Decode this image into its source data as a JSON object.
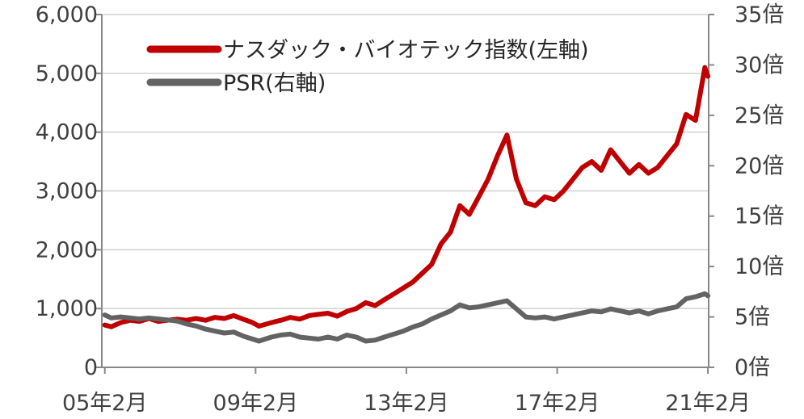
{
  "chart_data": {
    "type": "line",
    "title": "",
    "grid": true,
    "legend_position": "top-left",
    "x_ticks": [
      "05年2月",
      "09年2月",
      "13年2月",
      "17年2月",
      "21年2月"
    ],
    "y_left": {
      "min": 0,
      "max": 6000,
      "step": 1000,
      "tick_labels": [
        "0",
        "1,000",
        "2,000",
        "3,000",
        "4,000",
        "5,000",
        "6,000"
      ]
    },
    "y_right": {
      "min": 0,
      "max": 35,
      "step": 5,
      "tick_labels": [
        "0倍",
        "5倍",
        "10倍",
        "15倍",
        "20倍",
        "25倍",
        "30倍",
        "35倍"
      ]
    },
    "series": [
      {
        "name": "ナスダック・バイオテック指数(左軸)",
        "axis": "left",
        "color": "#c00000",
        "points": [
          [
            2005.08,
            720
          ],
          [
            2005.25,
            690
          ],
          [
            2005.5,
            760
          ],
          [
            2005.75,
            800
          ],
          [
            2006.0,
            780
          ],
          [
            2006.25,
            830
          ],
          [
            2006.5,
            780
          ],
          [
            2006.75,
            800
          ],
          [
            2007.0,
            820
          ],
          [
            2007.25,
            800
          ],
          [
            2007.5,
            830
          ],
          [
            2007.75,
            800
          ],
          [
            2008.0,
            850
          ],
          [
            2008.25,
            830
          ],
          [
            2008.5,
            880
          ],
          [
            2008.75,
            820
          ],
          [
            2009.0,
            760
          ],
          [
            2009.17,
            700
          ],
          [
            2009.5,
            760
          ],
          [
            2009.75,
            800
          ],
          [
            2010.0,
            850
          ],
          [
            2010.25,
            820
          ],
          [
            2010.5,
            880
          ],
          [
            2010.75,
            900
          ],
          [
            2011.0,
            920
          ],
          [
            2011.25,
            870
          ],
          [
            2011.5,
            950
          ],
          [
            2011.75,
            1000
          ],
          [
            2012.0,
            1100
          ],
          [
            2012.25,
            1050
          ],
          [
            2012.5,
            1150
          ],
          [
            2012.75,
            1250
          ],
          [
            2013.0,
            1350
          ],
          [
            2013.25,
            1450
          ],
          [
            2013.5,
            1600
          ],
          [
            2013.75,
            1750
          ],
          [
            2014.0,
            2100
          ],
          [
            2014.25,
            2300
          ],
          [
            2014.5,
            2750
          ],
          [
            2014.75,
            2600
          ],
          [
            2015.0,
            2900
          ],
          [
            2015.25,
            3200
          ],
          [
            2015.5,
            3600
          ],
          [
            2015.75,
            3950
          ],
          [
            2016.0,
            3200
          ],
          [
            2016.25,
            2800
          ],
          [
            2016.5,
            2750
          ],
          [
            2016.75,
            2900
          ],
          [
            2017.0,
            2850
          ],
          [
            2017.25,
            3000
          ],
          [
            2017.5,
            3200
          ],
          [
            2017.75,
            3400
          ],
          [
            2018.0,
            3500
          ],
          [
            2018.25,
            3350
          ],
          [
            2018.5,
            3700
          ],
          [
            2018.75,
            3500
          ],
          [
            2019.0,
            3300
          ],
          [
            2019.25,
            3450
          ],
          [
            2019.5,
            3300
          ],
          [
            2019.75,
            3400
          ],
          [
            2020.0,
            3600
          ],
          [
            2020.25,
            3800
          ],
          [
            2020.5,
            4300
          ],
          [
            2020.75,
            4200
          ],
          [
            2021.0,
            5100
          ],
          [
            2021.08,
            4950
          ]
        ]
      },
      {
        "name": "PSR(右軸)",
        "axis": "right",
        "color": "#636363",
        "points": [
          [
            2005.08,
            5.2
          ],
          [
            2005.25,
            4.9
          ],
          [
            2005.5,
            5.0
          ],
          [
            2005.75,
            4.9
          ],
          [
            2006.0,
            4.8
          ],
          [
            2006.25,
            4.9
          ],
          [
            2006.5,
            4.8
          ],
          [
            2006.75,
            4.7
          ],
          [
            2007.0,
            4.6
          ],
          [
            2007.25,
            4.3
          ],
          [
            2007.5,
            4.1
          ],
          [
            2007.75,
            3.8
          ],
          [
            2008.0,
            3.6
          ],
          [
            2008.25,
            3.4
          ],
          [
            2008.5,
            3.5
          ],
          [
            2008.75,
            3.1
          ],
          [
            2009.0,
            2.8
          ],
          [
            2009.17,
            2.6
          ],
          [
            2009.5,
            3.0
          ],
          [
            2009.75,
            3.2
          ],
          [
            2010.0,
            3.3
          ],
          [
            2010.25,
            3.0
          ],
          [
            2010.5,
            2.9
          ],
          [
            2010.75,
            2.8
          ],
          [
            2011.0,
            3.0
          ],
          [
            2011.25,
            2.8
          ],
          [
            2011.5,
            3.2
          ],
          [
            2011.75,
            3.0
          ],
          [
            2012.0,
            2.6
          ],
          [
            2012.25,
            2.7
          ],
          [
            2012.5,
            3.0
          ],
          [
            2012.75,
            3.3
          ],
          [
            2013.0,
            3.6
          ],
          [
            2013.25,
            4.0
          ],
          [
            2013.5,
            4.3
          ],
          [
            2013.75,
            4.8
          ],
          [
            2014.0,
            5.2
          ],
          [
            2014.25,
            5.6
          ],
          [
            2014.5,
            6.2
          ],
          [
            2014.75,
            5.9
          ],
          [
            2015.0,
            6.0
          ],
          [
            2015.25,
            6.2
          ],
          [
            2015.5,
            6.4
          ],
          [
            2015.75,
            6.6
          ],
          [
            2016.0,
            5.8
          ],
          [
            2016.25,
            5.0
          ],
          [
            2016.5,
            4.9
          ],
          [
            2016.75,
            5.0
          ],
          [
            2017.0,
            4.8
          ],
          [
            2017.25,
            5.0
          ],
          [
            2017.5,
            5.2
          ],
          [
            2017.75,
            5.4
          ],
          [
            2018.0,
            5.6
          ],
          [
            2018.25,
            5.5
          ],
          [
            2018.5,
            5.8
          ],
          [
            2018.75,
            5.6
          ],
          [
            2019.0,
            5.4
          ],
          [
            2019.25,
            5.6
          ],
          [
            2019.5,
            5.3
          ],
          [
            2019.75,
            5.6
          ],
          [
            2020.0,
            5.8
          ],
          [
            2020.25,
            6.0
          ],
          [
            2020.5,
            6.8
          ],
          [
            2020.75,
            7.0
          ],
          [
            2021.0,
            7.3
          ],
          [
            2021.08,
            7.1
          ]
        ]
      }
    ]
  }
}
